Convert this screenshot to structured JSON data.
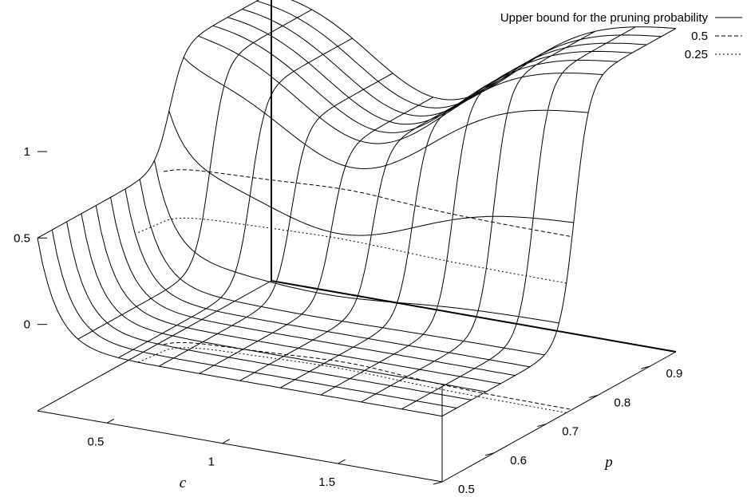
{
  "chart_data": {
    "type": "surface",
    "surface": {
      "description_of_function": "upper bound for the pruning probability; sigmoid step in p around 0.75, baseline depending on c",
      "c_range": [
        0.2,
        1.95
      ],
      "p_range": [
        0.5,
        0.95
      ],
      "z_range": [
        -0.5,
        1.2
      ]
    },
    "axes": {
      "x": {
        "label": "c",
        "ticks": [
          0.5,
          1,
          1.5
        ],
        "tick_labels": [
          "0.5",
          "1",
          "1.5"
        ]
      },
      "y": {
        "label": "p",
        "ticks": [
          0.5,
          0.6,
          0.7,
          0.8,
          0.9
        ],
        "tick_labels": [
          "0.5",
          "0.6",
          "0.7",
          "0.8",
          "0.9"
        ]
      },
      "z": {
        "label": "",
        "ticks": [
          0,
          0.5,
          1
        ],
        "tick_labels": [
          "0",
          "0.5",
          "1"
        ]
      }
    },
    "contour_levels": [
      0.5,
      0.25
    ],
    "legend": {
      "position": "top-right",
      "entries": [
        {
          "label": "Upper bound for the pruning probability",
          "style": "solid"
        },
        {
          "label": "0.5",
          "style": "dashed"
        },
        {
          "label": "0.25",
          "style": "dotted"
        }
      ]
    }
  }
}
